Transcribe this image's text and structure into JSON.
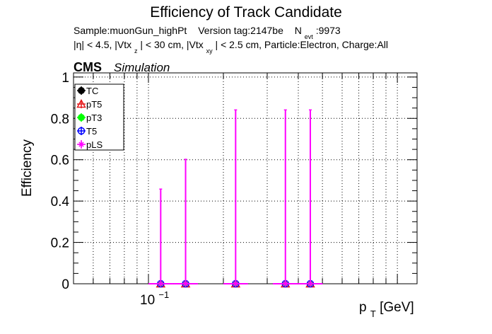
{
  "title": "Efficiency of Track Candidate",
  "subtitle1": {
    "sample": "Sample:muonGun_highPt",
    "version": "Version tag:2147be",
    "nevt_base": "N",
    "nevt_sub": "evt",
    "nevt_value": ":9973"
  },
  "subtitle2": {
    "part1": "|η| < 4.5, |Vtx",
    "sub1": "z",
    "part2": "| < 30 cm, |Vtx",
    "sub2": "xy",
    "part3": "| < 2.5 cm, Particle:Electron, Charge:All"
  },
  "cms_label": "CMS",
  "simulation_label": "Simulation",
  "ylabel": "Efficiency",
  "xlabel": {
    "base": "p",
    "sub": "T",
    "unit": " [GeV]"
  },
  "x_tick": {
    "base": "10",
    "exp": "−1"
  },
  "y_ticks": [
    "0",
    "0.2",
    "0.4",
    "0.6",
    "0.8",
    "1"
  ],
  "legend": [
    {
      "label": "TC",
      "color": "#000000",
      "marker": "circle-filled"
    },
    {
      "label": "pT5",
      "color": "#e41a1c",
      "marker": "triangle-open"
    },
    {
      "label": "pT3",
      "color": "#00ff00",
      "marker": "circle-filled"
    },
    {
      "label": "T5",
      "color": "#0000ff",
      "marker": "circle-open"
    },
    {
      "label": "pLS",
      "color": "#ff00ff",
      "marker": "star"
    }
  ],
  "chart_data": {
    "type": "scatter",
    "title": "Efficiency of Track Candidate",
    "xlabel": "pT [GeV]",
    "ylabel": "Efficiency",
    "x_scale": "log",
    "xlim": [
      0.05,
      1.2
    ],
    "ylim": [
      0,
      1.02
    ],
    "grid": true,
    "legend_position": "top-left",
    "series": [
      {
        "name": "TC",
        "color": "#000000",
        "points": [
          {
            "x": 0.112,
            "y": 0
          },
          {
            "x": 0.141,
            "y": 0
          },
          {
            "x": 0.224,
            "y": 0
          },
          {
            "x": 0.355,
            "y": 0
          },
          {
            "x": 0.447,
            "y": 0
          }
        ]
      },
      {
        "name": "pT5",
        "color": "#e41a1c",
        "points": [
          {
            "x": 0.112,
            "y": 0
          },
          {
            "x": 0.141,
            "y": 0
          },
          {
            "x": 0.224,
            "y": 0
          },
          {
            "x": 0.355,
            "y": 0
          },
          {
            "x": 0.447,
            "y": 0
          }
        ]
      },
      {
        "name": "pT3",
        "color": "#00ff00",
        "points": [
          {
            "x": 0.112,
            "y": 0
          },
          {
            "x": 0.141,
            "y": 0
          },
          {
            "x": 0.224,
            "y": 0
          },
          {
            "x": 0.355,
            "y": 0
          },
          {
            "x": 0.447,
            "y": 0
          }
        ]
      },
      {
        "name": "T5",
        "color": "#0000ff",
        "points": [
          {
            "x": 0.112,
            "y": 0
          },
          {
            "x": 0.141,
            "y": 0
          },
          {
            "x": 0.224,
            "y": 0
          },
          {
            "x": 0.355,
            "y": 0
          },
          {
            "x": 0.447,
            "y": 0
          }
        ]
      },
      {
        "name": "pLS",
        "color": "#ff00ff",
        "points": [
          {
            "x": 0.112,
            "y": 0,
            "err_high": 0.458,
            "x_low": 0.1,
            "x_high": 0.126
          },
          {
            "x": 0.141,
            "y": 0,
            "err_high": 0.602,
            "x_low": 0.126,
            "x_high": 0.158
          },
          {
            "x": 0.224,
            "y": 0,
            "err_high": 0.841,
            "x_low": 0.2,
            "x_high": 0.251
          },
          {
            "x": 0.355,
            "y": 0,
            "err_high": 0.841,
            "x_low": 0.316,
            "x_high": 0.398
          },
          {
            "x": 0.447,
            "y": 0,
            "err_high": 0.841,
            "x_low": 0.398,
            "x_high": 0.501
          }
        ]
      }
    ]
  }
}
